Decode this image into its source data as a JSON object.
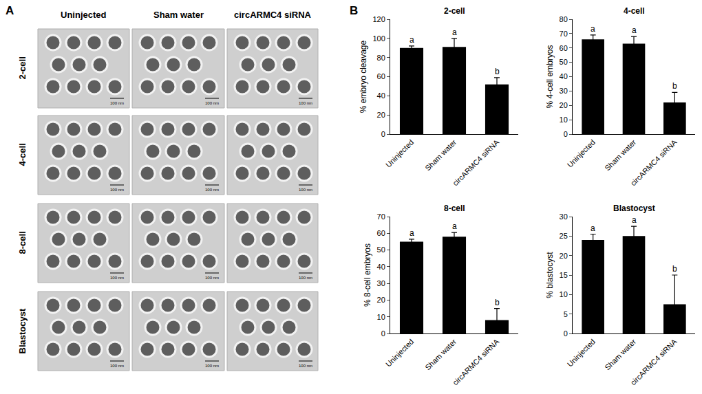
{
  "panels": {
    "a": "A",
    "b": "B"
  },
  "image_grid": {
    "columns": [
      "Uninjected",
      "Sham water",
      "circARMC4 siRNA"
    ],
    "rows": [
      "2-cell",
      "4-cell",
      "8-cell",
      "Blastocyst"
    ],
    "scale_bar": "100 nm"
  },
  "chart_data": [
    {
      "type": "bar",
      "title": "2-cell",
      "y_label": "% embryo cleavage",
      "categories": [
        "Uninjected",
        "Sham water",
        "circARMC4 siRNA"
      ],
      "values": [
        90,
        91,
        52
      ],
      "errors": [
        2,
        9,
        7
      ],
      "significance": [
        "a",
        "a",
        "b"
      ],
      "color": "#000000",
      "grid": false,
      "ylim": [
        0,
        120
      ],
      "yticks": [
        0,
        20,
        40,
        60,
        80,
        100,
        120
      ]
    },
    {
      "type": "bar",
      "title": "4-cell",
      "y_label": "% 4-cell embryos",
      "categories": [
        "Uninjected",
        "Sham water",
        "circARMC4 siRNA"
      ],
      "values": [
        66,
        63,
        22
      ],
      "errors": [
        3,
        5,
        7
      ],
      "significance": [
        "a",
        "a",
        "b"
      ],
      "color": "#000000",
      "grid": false,
      "ylim": [
        0,
        80
      ],
      "yticks": [
        0,
        10,
        20,
        30,
        40,
        50,
        60,
        70,
        80
      ]
    },
    {
      "type": "bar",
      "title": "8-cell",
      "y_label": "% 8-cell embryos",
      "categories": [
        "Uninjected",
        "Sham water",
        "circARMC4 siRNA"
      ],
      "values": [
        55,
        58,
        8
      ],
      "errors": [
        1.5,
        2.5,
        7
      ],
      "significance": [
        "a",
        "a",
        "b"
      ],
      "color": "#000000",
      "grid": false,
      "ylim": [
        0,
        70
      ],
      "yticks": [
        0,
        10,
        20,
        30,
        40,
        50,
        60,
        70
      ]
    },
    {
      "type": "bar",
      "title": "Blastocyst",
      "y_label": "% blastocyst",
      "categories": [
        "Uninjected",
        "Sham water",
        "circARMC4 siRNA"
      ],
      "values": [
        24,
        25,
        7.5
      ],
      "errors": [
        1.5,
        2.5,
        7.5
      ],
      "significance": [
        "a",
        "a",
        "b"
      ],
      "color": "#000000",
      "grid": false,
      "ylim": [
        0,
        30
      ],
      "yticks": [
        0,
        5,
        10,
        15,
        20,
        25,
        30
      ]
    }
  ]
}
